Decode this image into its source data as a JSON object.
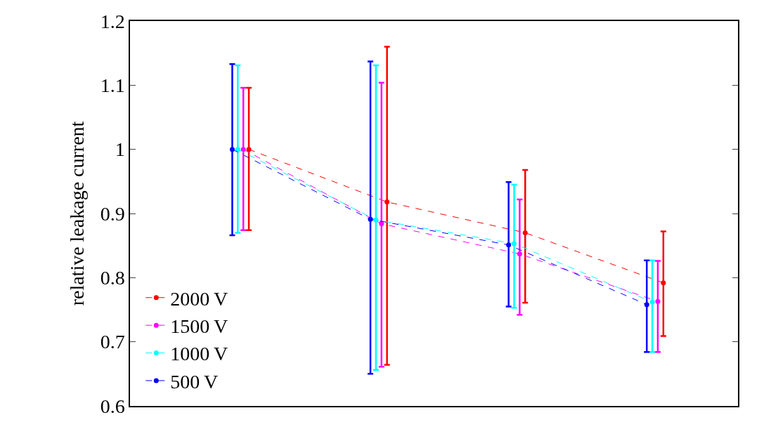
{
  "chart_data": {
    "type": "line",
    "ylabel": "relative leakage current",
    "categories": [
      null,
      null,
      null,
      null
    ],
    "ylim": [
      0.6,
      1.2
    ],
    "yticks": [
      0.6,
      0.7,
      0.8,
      0.9,
      1,
      1.1,
      1.2
    ],
    "tick_labels": "y",
    "legend": "bottom left",
    "marker": "circle",
    "line_style": "dashed",
    "series": [
      {
        "name": "2000 V",
        "color": "#ff0000",
        "values": [
          1.0,
          0.918,
          0.87,
          0.792
        ],
        "errors": [
          [
            0.874,
            1.096
          ],
          [
            0.664,
            1.16
          ],
          [
            0.761,
            0.968
          ],
          [
            0.709,
            0.872
          ]
        ]
      },
      {
        "name": "1500 V",
        "color": "#ff00ff",
        "values": [
          1.0,
          0.884,
          0.837,
          0.763
        ],
        "errors": [
          [
            0.874,
            1.096
          ],
          [
            0.661,
            1.104
          ],
          [
            0.742,
            0.922
          ],
          [
            0.684,
            0.826
          ]
        ]
      },
      {
        "name": "1000 V",
        "color": "#00ffff",
        "values": [
          1.0,
          0.89,
          0.853,
          0.762
        ],
        "errors": [
          [
            0.87,
            1.131
          ],
          [
            0.656,
            1.131
          ],
          [
            0.753,
            0.945
          ],
          [
            0.684,
            0.827
          ]
        ]
      },
      {
        "name": "500 V",
        "color": "#0000ff",
        "values": [
          1.0,
          0.891,
          0.851,
          0.758
        ],
        "errors": [
          [
            0.866,
            1.133
          ],
          [
            0.65,
            1.137
          ],
          [
            0.755,
            0.949
          ],
          [
            0.684,
            0.827
          ]
        ]
      }
    ]
  }
}
